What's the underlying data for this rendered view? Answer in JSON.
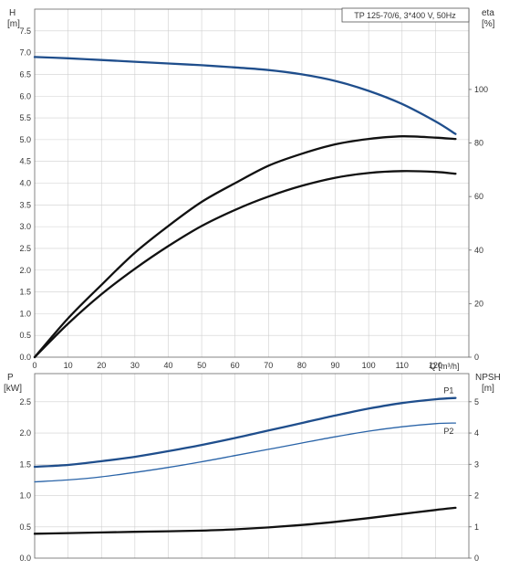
{
  "chart_data": [
    {
      "type": "line",
      "title": "TP 125-70/6, 3*400 V, 50Hz",
      "y_left_label": "H",
      "y_left_unit": "[m]",
      "y_right_label": "eta",
      "y_right_unit": "[%]",
      "x_label": "Q [m³/h]",
      "xlim": [
        0,
        130
      ],
      "x_ticks": [
        "0",
        "10",
        "20",
        "30",
        "40",
        "50",
        "60",
        "70",
        "80",
        "90",
        "100",
        "110",
        "120"
      ],
      "ylim_left": [
        0,
        8.0
      ],
      "y_left_ticks": [
        "0.0",
        "0.5",
        "1.0",
        "1.5",
        "2.0",
        "2.5",
        "3.0",
        "3.5",
        "4.0",
        "4.5",
        "5.0",
        "5.5",
        "6.0",
        "6.5",
        "7.0",
        "7.5"
      ],
      "ylim_right": [
        0,
        130
      ],
      "y_right_ticks": [
        "0",
        "20",
        "40",
        "60",
        "80",
        "100"
      ],
      "grid": true,
      "series": [
        {
          "axis": "left",
          "color": "#1f4e8c",
          "x": [
            0,
            10,
            20,
            30,
            40,
            50,
            60,
            70,
            80,
            90,
            100,
            110,
            120,
            126
          ],
          "y": [
            6.9,
            6.87,
            6.83,
            6.79,
            6.75,
            6.71,
            6.66,
            6.6,
            6.5,
            6.35,
            6.12,
            5.82,
            5.42,
            5.13
          ]
        },
        {
          "axis": "right",
          "color": "#111111",
          "x": [
            0,
            10,
            20,
            30,
            40,
            50,
            60,
            70,
            80,
            90,
            100,
            110,
            120,
            126
          ],
          "y": [
            0,
            14.5,
            27,
            39,
            49,
            58,
            65,
            71.5,
            76,
            79.5,
            81.5,
            82.5,
            82,
            81.5
          ]
        },
        {
          "axis": "right",
          "color": "#111111",
          "x": [
            0,
            10,
            20,
            30,
            40,
            50,
            60,
            70,
            80,
            90,
            100,
            110,
            120,
            126
          ],
          "y": [
            0,
            12.5,
            23.5,
            33,
            41.5,
            49,
            55,
            60,
            64,
            67,
            68.8,
            69.5,
            69.2,
            68.5
          ]
        }
      ]
    },
    {
      "type": "line",
      "y_left_label": "P",
      "y_left_unit": "[kW]",
      "y_right_label": "NPSH",
      "y_right_unit": "[m]",
      "xlim": [
        0,
        130
      ],
      "ylim_left": [
        0,
        2.95
      ],
      "y_left_ticks": [
        "0.0",
        "0.5",
        "1.0",
        "1.5",
        "2.0",
        "2.5"
      ],
      "ylim_right": [
        0,
        5.9
      ],
      "y_right_ticks": [
        "0",
        "1",
        "2",
        "3",
        "4",
        "5"
      ],
      "grid": true,
      "series": [
        {
          "name": "P1",
          "axis": "left",
          "color": "#1f4e8c",
          "x": [
            0,
            10,
            20,
            30,
            40,
            50,
            60,
            70,
            80,
            90,
            100,
            110,
            120,
            126
          ],
          "y": [
            1.46,
            1.49,
            1.55,
            1.62,
            1.71,
            1.81,
            1.92,
            2.04,
            2.16,
            2.28,
            2.39,
            2.48,
            2.54,
            2.56
          ]
        },
        {
          "name": "P2",
          "axis": "left",
          "color": "#2a64a8",
          "x": [
            0,
            10,
            20,
            30,
            40,
            50,
            60,
            70,
            80,
            90,
            100,
            110,
            120,
            126
          ],
          "y": [
            1.22,
            1.25,
            1.3,
            1.37,
            1.45,
            1.54,
            1.64,
            1.74,
            1.84,
            1.94,
            2.03,
            2.1,
            2.15,
            2.16
          ]
        },
        {
          "axis": "right",
          "color": "#111111",
          "x": [
            0,
            10,
            20,
            30,
            40,
            50,
            60,
            70,
            80,
            90,
            100,
            110,
            120,
            126
          ],
          "y": [
            0.78,
            0.8,
            0.82,
            0.84,
            0.86,
            0.88,
            0.92,
            0.98,
            1.06,
            1.16,
            1.28,
            1.41,
            1.54,
            1.61
          ]
        }
      ]
    }
  ]
}
